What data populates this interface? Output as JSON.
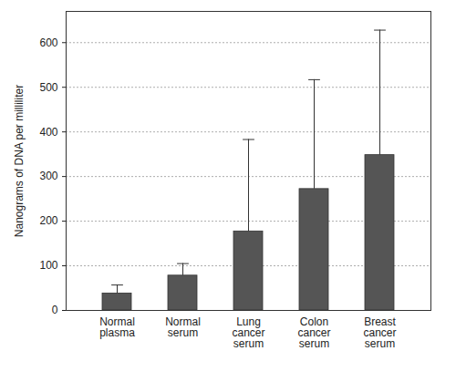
{
  "chart_data": {
    "type": "bar",
    "y_label": "Nanograms of DNA per milliliter",
    "categories": [
      "Normal plasma",
      "Normal serum",
      "Lung cancer serum",
      "Colon cancer serum",
      "Breast cancer serum"
    ],
    "values": [
      38,
      78,
      177,
      272,
      348
    ],
    "errors": [
      19,
      27,
      206,
      245,
      280
    ],
    "color": "#555555",
    "ylim": [
      0,
      670
    ],
    "yticks": [
      0,
      100,
      200,
      300,
      400,
      500,
      600
    ],
    "grid": true
  }
}
